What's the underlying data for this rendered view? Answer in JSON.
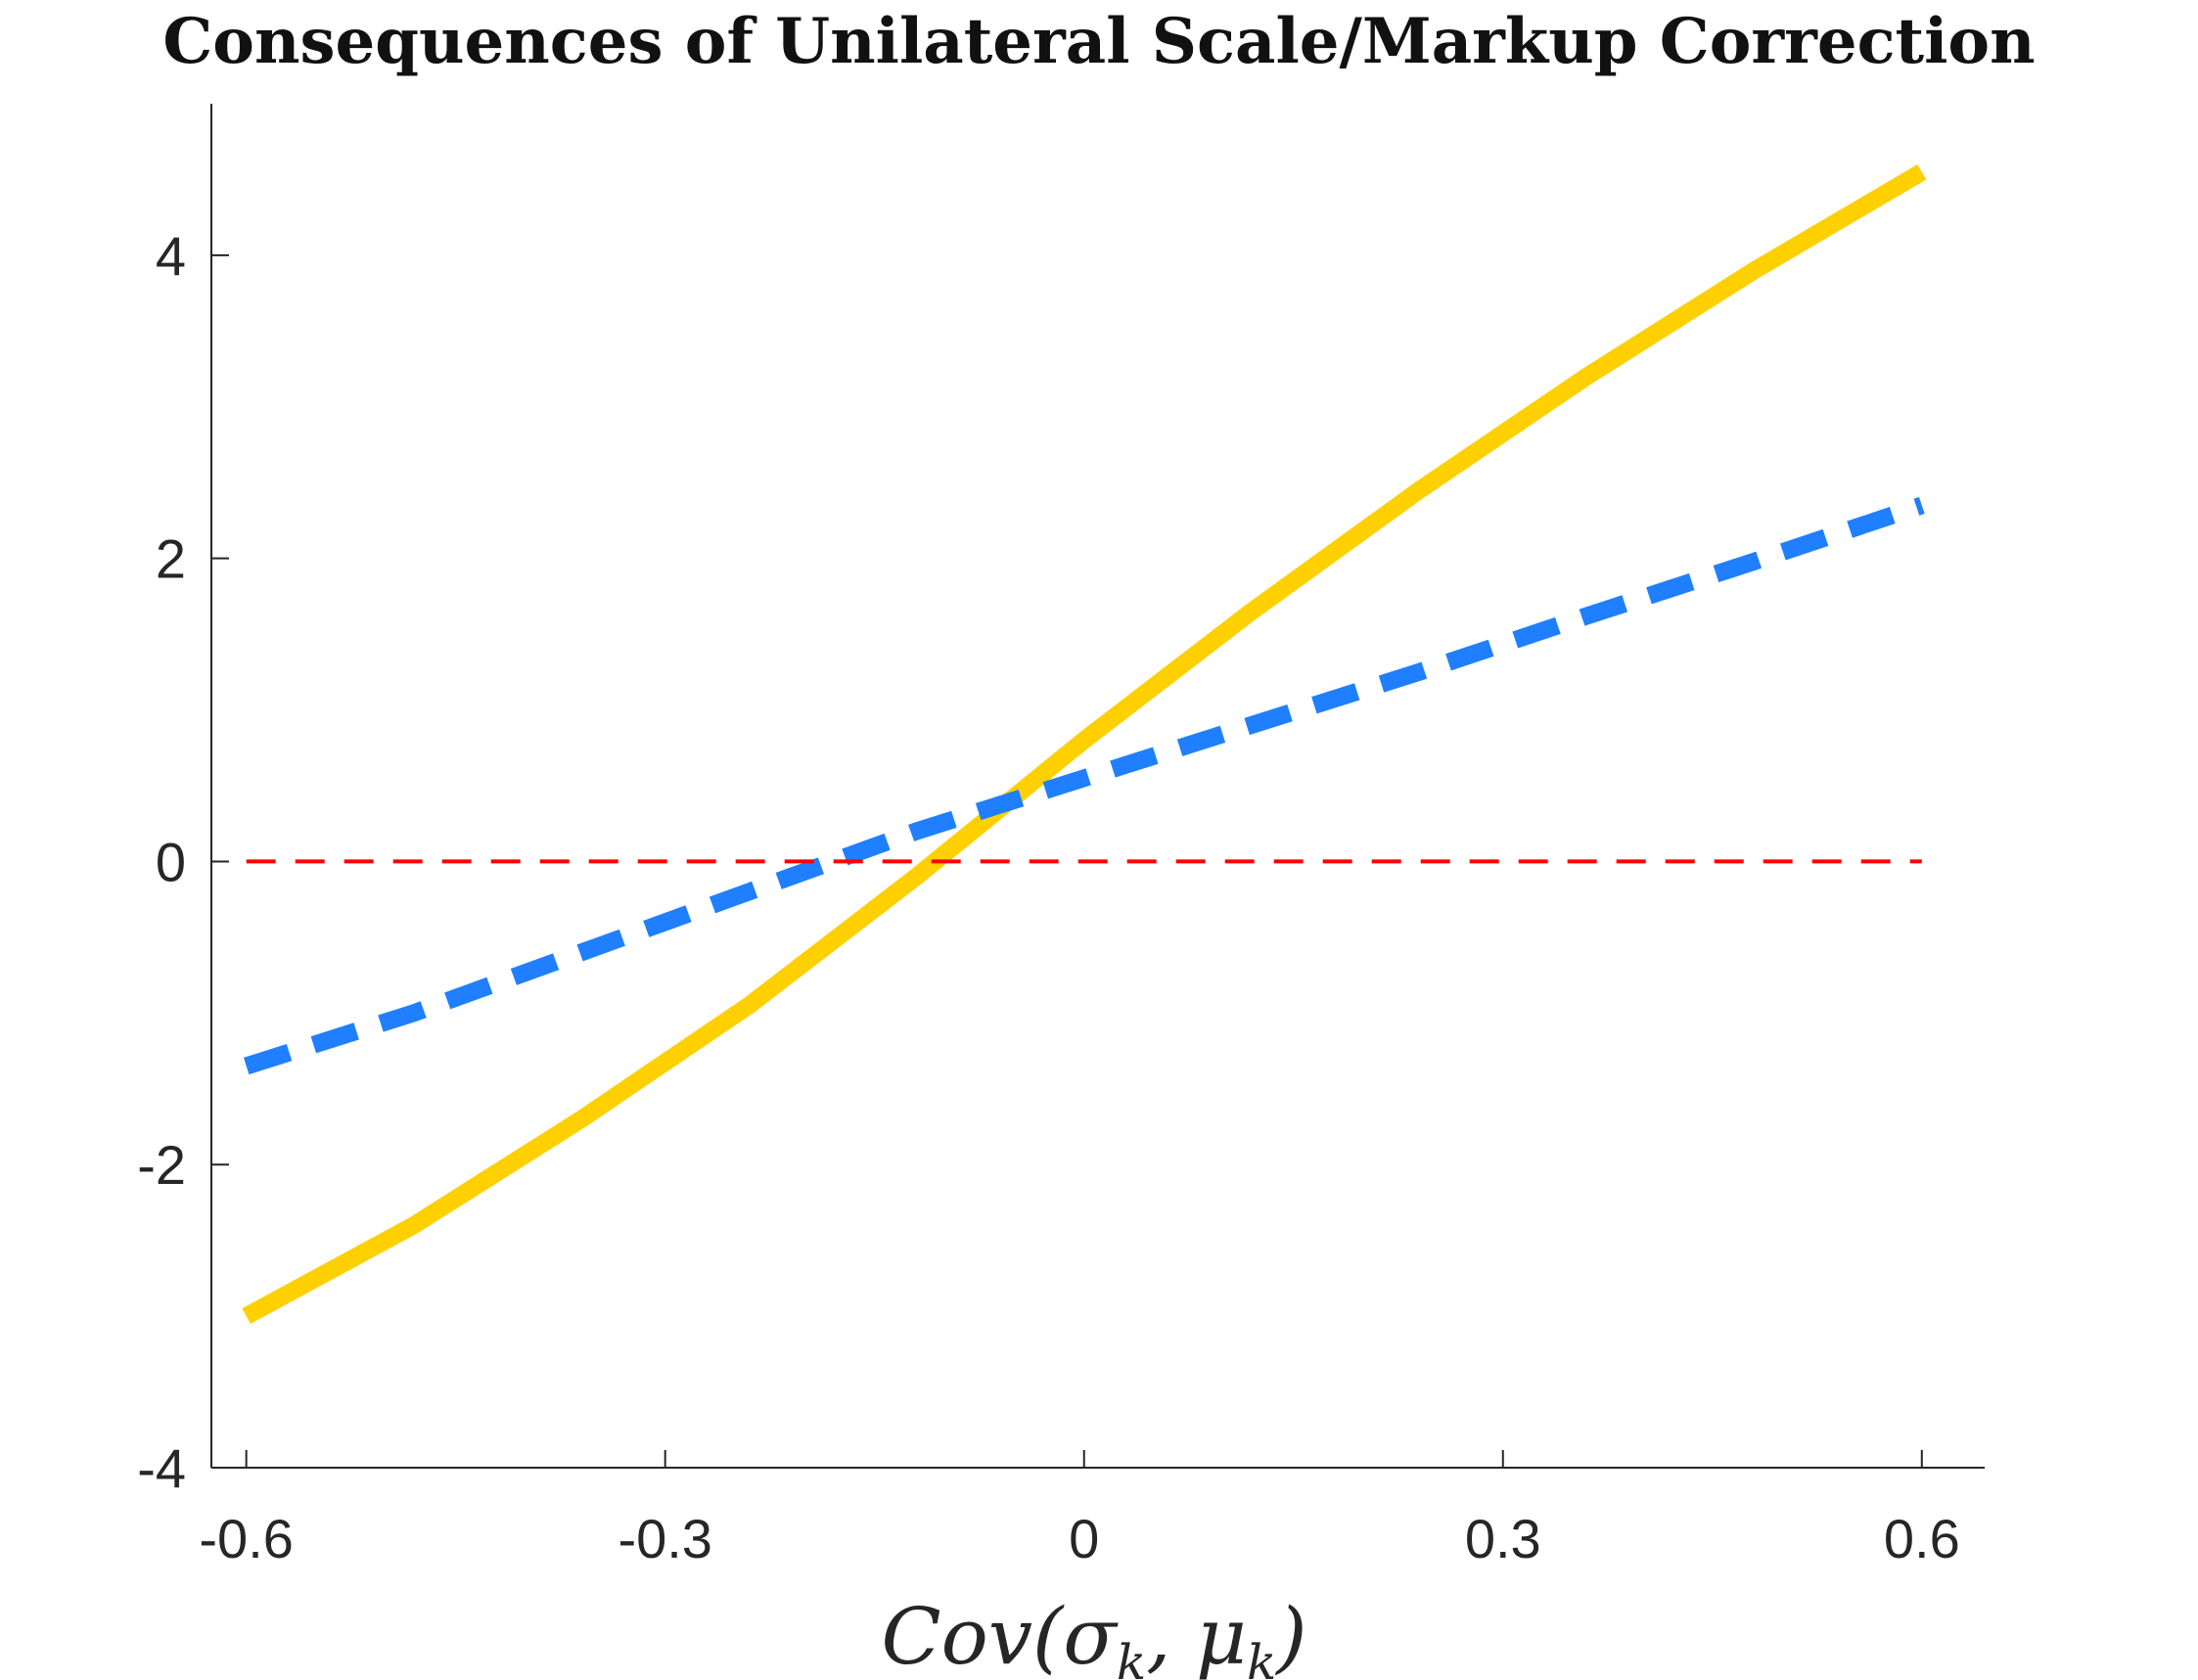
{
  "chart_data": {
    "type": "line",
    "title": "Consequences of Unilateral Scale/Markup Correction",
    "xlabel": "Cov(σ_k, μ_k)",
    "ylabel": "",
    "xlim": [
      -0.625,
      0.645
    ],
    "ylim": [
      -4,
      5
    ],
    "xticks": [
      -0.6,
      -0.3,
      0,
      0.3,
      0.6
    ],
    "xtick_labels": [
      "-0.6",
      "-0.3",
      "0",
      "0.3",
      "0.6"
    ],
    "yticks": [
      -4,
      -2,
      0,
      2,
      4
    ],
    "ytick_labels": [
      "-4",
      "-2",
      "0",
      "2",
      "4"
    ],
    "grid": false,
    "box": false,
    "series": [
      {
        "style": "solid",
        "color": "#FFD000",
        "x": [
          -0.6,
          -0.48,
          -0.36,
          -0.24,
          -0.12,
          0.0,
          0.12,
          0.24,
          0.36,
          0.48,
          0.6
        ],
        "y": [
          -3.0,
          -2.4,
          -1.7,
          -0.95,
          -0.1,
          0.8,
          1.65,
          2.45,
          3.2,
          3.9,
          4.55
        ]
      },
      {
        "style": "dashed",
        "color": "#1F7FFF",
        "x": [
          -0.6,
          -0.48,
          -0.36,
          -0.24,
          -0.12,
          0.0,
          0.12,
          0.24,
          0.36,
          0.48,
          0.6
        ],
        "y": [
          -1.35,
          -1.0,
          -0.6,
          -0.2,
          0.2,
          0.55,
          0.9,
          1.25,
          1.62,
          1.98,
          2.35
        ]
      },
      {
        "style": "dashed",
        "color": "#FF0000",
        "x": [
          -0.6,
          0.6
        ],
        "y": [
          0,
          0
        ]
      }
    ]
  }
}
